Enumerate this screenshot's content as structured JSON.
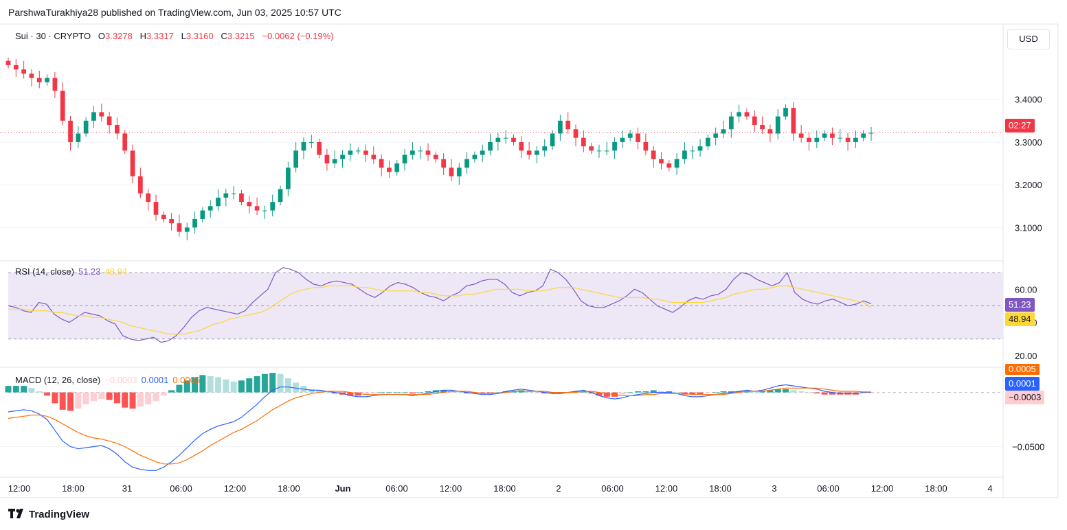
{
  "header": {
    "text": "ParshwaTurakhiya28 published on TradingView.com, Jun 03, 2025 10:57 UTC"
  },
  "symbol_legend": {
    "symbol": "Sui · 30 · CRYPTO",
    "o_label": "O",
    "o_value": "3.3278",
    "h_label": "H",
    "h_value": "3.3317",
    "l_label": "L",
    "l_value": "3.3160",
    "c_label": "C",
    "c_value": "3.3215",
    "change": "−0.0062 (−0.19%)"
  },
  "currency_button": "USD",
  "rsi_legend": {
    "name": "RSI (14, close)",
    "rsi": "51.23",
    "ma": "48.94"
  },
  "macd_legend": {
    "name": "MACD (12, 26, close)",
    "hist": "−0.0003",
    "macd": "0.0001",
    "signal": "0.0005"
  },
  "price_tags": {
    "countdown": "02:27",
    "rsi": "51.23",
    "rsi_ma": "48.94",
    "macd_signal": "0.0005",
    "macd_line": "0.0001",
    "macd_hist": "−0.0003"
  },
  "brand": "TradingView",
  "colors": {
    "up": "#089981",
    "down": "#f23645",
    "rsi": "#7e57c2",
    "rsi_ma": "#fdd835",
    "macd": "#2962ff",
    "signal": "#ff6d00",
    "hist_up": "#26a69a",
    "hist_up_light": "#b2dfdb",
    "hist_down": "#ff5252",
    "hist_down_light": "#ffcdd2",
    "rsi_band": "#ede7f6"
  },
  "chart_data": [
    {
      "type": "candlestick",
      "title": "Sui · 30 · CRYPTO",
      "interval": "30m",
      "x_tick_labels": [
        "12:00",
        "18:00",
        "31",
        "06:00",
        "12:00",
        "18:00",
        "Jun",
        "06:00",
        "12:00",
        "18:00",
        "2",
        "06:00",
        "12:00",
        "18:00",
        "3",
        "06:00",
        "12:00",
        "18:00",
        "4"
      ],
      "y_tick_labels": [
        "3.1000",
        "3.2000",
        "3.3000",
        "3.4000"
      ],
      "ylim": [
        3.03,
        3.52
      ],
      "last_close": 3.3215,
      "close_series": [
        3.48,
        3.47,
        3.46,
        3.45,
        3.44,
        3.45,
        3.42,
        3.35,
        3.3,
        3.32,
        3.35,
        3.37,
        3.36,
        3.34,
        3.32,
        3.28,
        3.22,
        3.18,
        3.16,
        3.13,
        3.12,
        3.11,
        3.09,
        3.1,
        3.12,
        3.14,
        3.15,
        3.17,
        3.18,
        3.18,
        3.16,
        3.15,
        3.14,
        3.14,
        3.16,
        3.19,
        3.24,
        3.28,
        3.3,
        3.3,
        3.27,
        3.25,
        3.26,
        3.27,
        3.28,
        3.28,
        3.27,
        3.26,
        3.24,
        3.23,
        3.25,
        3.27,
        3.28,
        3.28,
        3.27,
        3.26,
        3.24,
        3.22,
        3.24,
        3.26,
        3.27,
        3.28,
        3.3,
        3.31,
        3.31,
        3.3,
        3.28,
        3.27,
        3.28,
        3.29,
        3.32,
        3.35,
        3.33,
        3.31,
        3.29,
        3.28,
        3.28,
        3.28,
        3.3,
        3.31,
        3.32,
        3.3,
        3.28,
        3.26,
        3.25,
        3.24,
        3.26,
        3.28,
        3.28,
        3.29,
        3.31,
        3.32,
        3.33,
        3.36,
        3.37,
        3.36,
        3.34,
        3.33,
        3.32,
        3.36,
        3.38,
        3.32,
        3.31,
        3.3,
        3.31,
        3.32,
        3.31,
        3.31,
        3.3,
        3.31,
        3.32,
        3.3215
      ],
      "panel": "price"
    },
    {
      "type": "line",
      "title": "RSI (14, close)",
      "y_tick_labels": [
        "20.00",
        "40.00",
        "60.00"
      ],
      "ylim": [
        15,
        75
      ],
      "bands": [
        30,
        70
      ],
      "series": [
        {
          "name": "RSI",
          "values": [
            50,
            49,
            47,
            46,
            52,
            51,
            45,
            42,
            40,
            43,
            46,
            45,
            44,
            41,
            39,
            32,
            30,
            29,
            30,
            31,
            28,
            29,
            32,
            37,
            43,
            47,
            49,
            48,
            47,
            46,
            45,
            47,
            52,
            56,
            60,
            70,
            73,
            72,
            70,
            66,
            63,
            62,
            64,
            65,
            64,
            63,
            60,
            57,
            55,
            58,
            62,
            64,
            63,
            61,
            58,
            56,
            55,
            53,
            56,
            58,
            62,
            63,
            65,
            66,
            66,
            63,
            58,
            56,
            58,
            59,
            62,
            72,
            70,
            66,
            60,
            53,
            50,
            49,
            49,
            51,
            53,
            56,
            60,
            58,
            54,
            50,
            48,
            46,
            49,
            53,
            55,
            54,
            56,
            57,
            60,
            66,
            70,
            69,
            66,
            64,
            62,
            64,
            70,
            58,
            54,
            52,
            51,
            53,
            54,
            52,
            50,
            51,
            53,
            51.23
          ]
        },
        {
          "name": "MA",
          "values": [
            48,
            48,
            48,
            47,
            47,
            47,
            46,
            46,
            45,
            44,
            44,
            43,
            43,
            42,
            41,
            40,
            38,
            37,
            36,
            35,
            34,
            33,
            33,
            33,
            34,
            35,
            37,
            39,
            40,
            42,
            43,
            44,
            45,
            46,
            48,
            51,
            54,
            57,
            59,
            60,
            61,
            61,
            62,
            62,
            62,
            62,
            61,
            61,
            60,
            59,
            59,
            59,
            59,
            59,
            58,
            58,
            57,
            56,
            56,
            56,
            57,
            57,
            58,
            59,
            60,
            60,
            60,
            60,
            59,
            59,
            59,
            60,
            61,
            61,
            61,
            60,
            59,
            58,
            57,
            56,
            55,
            55,
            55,
            55,
            54,
            54,
            53,
            52,
            52,
            52,
            52,
            52,
            53,
            54,
            55,
            57,
            58,
            59,
            60,
            60,
            61,
            62,
            62,
            61,
            60,
            59,
            58,
            57,
            56,
            55,
            54,
            53,
            52,
            48.94
          ]
        }
      ],
      "panel": "rsi"
    },
    {
      "type": "line",
      "title": "MACD (12, 26, close)",
      "y_tick_labels": [
        "−0.0500"
      ],
      "ylim": [
        -0.075,
        0.02
      ],
      "series": [
        {
          "name": "MACD",
          "values": [
            -0.018,
            -0.017,
            -0.016,
            -0.017,
            -0.02,
            -0.025,
            -0.035,
            -0.045,
            -0.05,
            -0.052,
            -0.051,
            -0.05,
            -0.049,
            -0.052,
            -0.057,
            -0.064,
            -0.069,
            -0.071,
            -0.072,
            -0.072,
            -0.069,
            -0.064,
            -0.058,
            -0.051,
            -0.044,
            -0.038,
            -0.034,
            -0.031,
            -0.029,
            -0.027,
            -0.023,
            -0.017,
            -0.011,
            -0.004,
            0.002,
            0.005,
            0.005,
            0.004,
            0.003,
            0.002,
            0.002,
            0.001,
            0.0,
            -0.001,
            -0.003,
            -0.004,
            -0.004,
            -0.003,
            -0.002,
            -0.002,
            -0.002,
            -0.002,
            -0.003,
            -0.002,
            -0.001,
            0.001,
            0.002,
            0.002,
            0.001,
            0.0,
            -0.001,
            -0.002,
            -0.002,
            -0.001,
            0.001,
            0.002,
            0.003,
            0.002,
            0.001,
            0.0,
            -0.001,
            -0.001,
            0.0,
            0.001,
            0.002,
            0.0,
            -0.003,
            -0.005,
            -0.006,
            -0.005,
            -0.003,
            -0.002,
            -0.001,
            0.0,
            0.0,
            0.0,
            -0.001,
            -0.003,
            -0.004,
            -0.004,
            -0.003,
            -0.002,
            -0.001,
            0.0,
            0.001,
            0.002,
            0.001,
            0.002,
            0.004,
            0.006,
            0.007,
            0.006,
            0.005,
            0.004,
            0.003,
            0.001,
            0.0,
            -0.001,
            -0.001,
            -0.001,
            0.0,
            0.0001
          ]
        },
        {
          "name": "Signal",
          "values": [
            -0.024,
            -0.023,
            -0.022,
            -0.021,
            -0.021,
            -0.022,
            -0.025,
            -0.029,
            -0.033,
            -0.037,
            -0.04,
            -0.042,
            -0.043,
            -0.045,
            -0.047,
            -0.05,
            -0.054,
            -0.058,
            -0.061,
            -0.064,
            -0.066,
            -0.066,
            -0.065,
            -0.062,
            -0.058,
            -0.054,
            -0.049,
            -0.045,
            -0.041,
            -0.037,
            -0.034,
            -0.03,
            -0.026,
            -0.021,
            -0.016,
            -0.012,
            -0.008,
            -0.005,
            -0.003,
            -0.001,
            0.0,
            0.001,
            0.001,
            0.001,
            0.0,
            -0.001,
            -0.002,
            -0.002,
            -0.002,
            -0.002,
            -0.002,
            -0.002,
            -0.002,
            -0.002,
            -0.002,
            -0.001,
            0.0,
            0.001,
            0.001,
            0.001,
            0.0,
            -0.001,
            -0.001,
            -0.001,
            0.0,
            0.001,
            0.001,
            0.001,
            0.001,
            0.001,
            0.0,
            0.0,
            0.0,
            0.0,
            0.001,
            0.001,
            0.0,
            -0.001,
            -0.002,
            -0.003,
            -0.003,
            -0.003,
            -0.002,
            -0.002,
            -0.001,
            -0.001,
            -0.001,
            -0.001,
            -0.002,
            -0.002,
            -0.002,
            -0.002,
            -0.002,
            -0.001,
            0.0,
            0.001,
            0.001,
            0.001,
            0.002,
            0.003,
            0.004,
            0.004,
            0.004,
            0.004,
            0.004,
            0.003,
            0.002,
            0.001,
            0.001,
            0.001,
            0.0005,
            0.0005
          ]
        }
      ],
      "histogram": [
        0.006,
        0.006,
        0.006,
        0.004,
        0.001,
        -0.003,
        -0.01,
        -0.016,
        -0.017,
        -0.015,
        -0.011,
        -0.008,
        -0.006,
        -0.007,
        -0.01,
        -0.014,
        -0.015,
        -0.013,
        -0.011,
        -0.008,
        -0.003,
        0.002,
        0.007,
        0.011,
        0.014,
        0.016,
        0.015,
        0.014,
        0.012,
        0.01,
        0.011,
        0.013,
        0.015,
        0.017,
        0.018,
        0.017,
        0.013,
        0.009,
        0.006,
        0.003,
        0.002,
        0.0,
        -0.001,
        -0.002,
        -0.003,
        -0.003,
        -0.002,
        -0.001,
        0.0,
        0.0,
        0.0,
        0.0,
        -0.001,
        0.0,
        0.001,
        0.002,
        0.002,
        0.001,
        0.0,
        -0.001,
        -0.001,
        -0.001,
        -0.001,
        0.0,
        0.001,
        0.001,
        0.002,
        0.001,
        0.0,
        -0.001,
        -0.001,
        -0.001,
        0.0,
        0.001,
        0.001,
        -0.001,
        -0.003,
        -0.004,
        -0.004,
        -0.002,
        0.0,
        0.001,
        0.001,
        0.002,
        0.001,
        0.001,
        0.0,
        -0.002,
        -0.002,
        -0.002,
        -0.001,
        0.0,
        0.001,
        0.001,
        0.001,
        0.001,
        0.0,
        0.001,
        0.002,
        0.003,
        0.003,
        0.002,
        0.001,
        0.0,
        -0.001,
        -0.002,
        -0.002,
        -0.002,
        -0.002,
        -0.002,
        -0.0005,
        -0.0003
      ],
      "panel": "macd"
    }
  ]
}
